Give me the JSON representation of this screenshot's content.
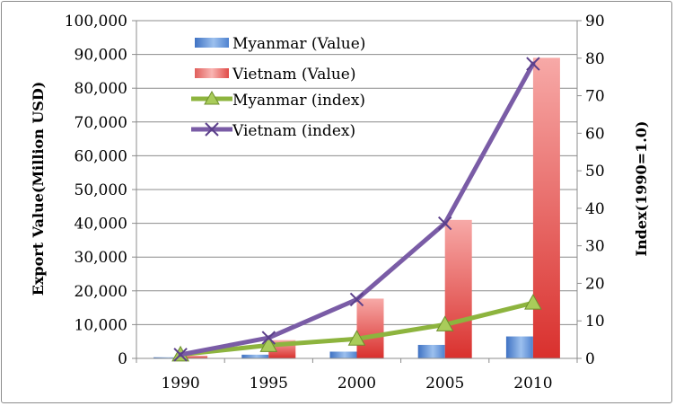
{
  "chart_data": {
    "type": "bar",
    "categories": [
      "1990",
      "1995",
      "2000",
      "2005",
      "2010"
    ],
    "series": [
      {
        "name": "Myanmar (Value)",
        "kind": "bar",
        "axis": "left",
        "color": "#5b8fd6",
        "values": [
          325,
          1100,
          2000,
          4000,
          6500
        ]
      },
      {
        "name": "Vietnam (Value)",
        "kind": "bar",
        "axis": "left",
        "color": "#e04b48",
        "values": [
          800,
          5400,
          17700,
          41000,
          89000
        ]
      },
      {
        "name": "Myanmar (index)",
        "kind": "line",
        "axis": "right",
        "color": "#8db43e",
        "marker": "triangle",
        "values": [
          1.0,
          3.5,
          5.2,
          9.0,
          14.8
        ]
      },
      {
        "name": "Vietnam (index)",
        "kind": "line",
        "axis": "right",
        "color": "#7a5ca6",
        "marker": "x",
        "values": [
          1.0,
          5.5,
          15.7,
          36.0,
          78.5
        ]
      }
    ],
    "left_axis": {
      "label": "Export Value(Million USD)",
      "ylim": [
        0,
        100000
      ],
      "ticks": [
        0,
        10000,
        20000,
        30000,
        40000,
        50000,
        60000,
        70000,
        80000,
        90000,
        100000
      ],
      "tick_labels": [
        "0",
        "10,000",
        "20,000",
        "30,000",
        "40,000",
        "50,000",
        "60,000",
        "70,000",
        "80,000",
        "90,000",
        "100,000"
      ]
    },
    "right_axis": {
      "label": "Index(1990=1.0)",
      "ylim": [
        0,
        90
      ],
      "ticks": [
        0,
        10,
        20,
        30,
        40,
        50,
        60,
        70,
        80,
        90
      ],
      "tick_labels": [
        "0",
        "10",
        "20",
        "30",
        "40",
        "50",
        "60",
        "70",
        "80",
        "90"
      ]
    },
    "grid": true,
    "legend": "top-left"
  }
}
